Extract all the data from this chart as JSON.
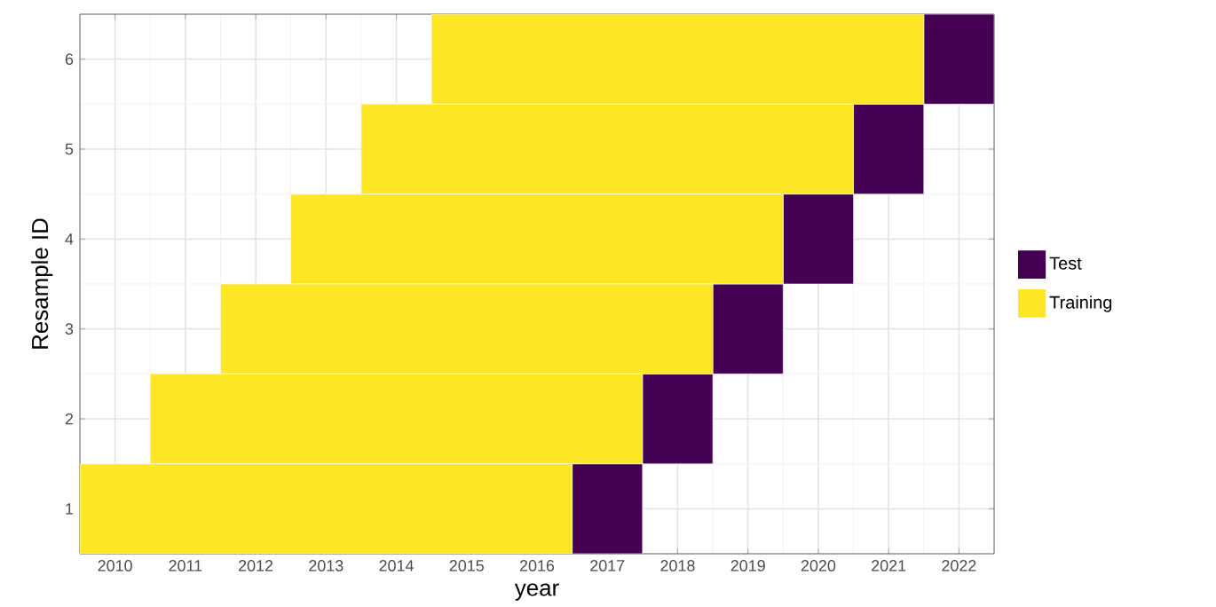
{
  "chart_data": {
    "type": "bar",
    "orientation": "horizontal",
    "xlabel": "year",
    "ylabel": "Resample ID",
    "categories": [
      "6",
      "5",
      "4",
      "3",
      "2",
      "1"
    ],
    "series": [
      {
        "name": "Test",
        "color": "#440154",
        "base": [
          2021.5,
          2020.5,
          2019.5,
          2018.5,
          2017.5,
          2016.5
        ],
        "values": [
          1,
          1,
          1,
          1,
          1,
          1
        ]
      },
      {
        "name": "Training",
        "color": "#fde725",
        "base": [
          2014.5,
          2013.5,
          2012.5,
          2011.5,
          2010.5,
          2009.5
        ],
        "values": [
          7,
          7,
          7,
          7,
          7,
          7
        ]
      }
    ],
    "xlim": [
      2009.5,
      2022.5
    ],
    "xticks": [
      2010,
      2011,
      2012,
      2013,
      2014,
      2015,
      2016,
      2017,
      2018,
      2019,
      2020,
      2021,
      2022
    ],
    "grid": true,
    "legend": "right"
  }
}
